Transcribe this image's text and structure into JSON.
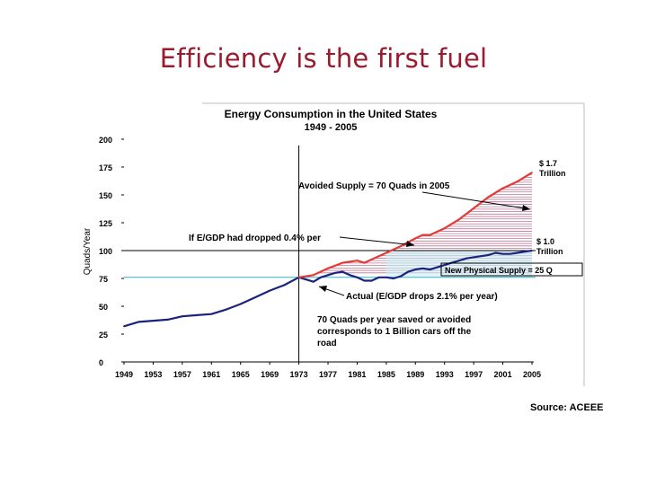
{
  "slide": {
    "title": "Efficiency is the first fuel",
    "source": "Source: ACEEE"
  },
  "chart_data": {
    "type": "line",
    "title": "Energy Consumption in the United States",
    "subtitle": "1949 - 2005",
    "xlabel": "",
    "ylabel": "Quads/Year",
    "xlim": [
      1949,
      2005
    ],
    "ylim": [
      0,
      200
    ],
    "x_ticks": [
      1949,
      1953,
      1957,
      1961,
      1965,
      1969,
      1973,
      1977,
      1981,
      1985,
      1989,
      1993,
      1997,
      2001,
      2005
    ],
    "y_ticks": [
      0,
      25,
      50,
      75,
      100,
      125,
      150,
      175,
      200
    ],
    "grid": false,
    "series": [
      {
        "name": "Actual (E/GDP drops 2.1% per year)",
        "color": "#1a237e",
        "x": [
          1949,
          1951,
          1953,
          1955,
          1957,
          1959,
          1961,
          1963,
          1965,
          1967,
          1969,
          1971,
          1973,
          1974,
          1975,
          1976,
          1977,
          1978,
          1979,
          1980,
          1981,
          1982,
          1983,
          1984,
          1985,
          1986,
          1987,
          1988,
          1989,
          1990,
          1991,
          1992,
          1993,
          1994,
          1995,
          1996,
          1997,
          1998,
          1999,
          2000,
          2001,
          2002,
          2003,
          2004,
          2005
        ],
        "values": [
          32,
          36,
          37,
          38,
          41,
          42,
          43,
          47,
          52,
          58,
          64,
          69,
          76,
          74,
          72,
          76,
          78,
          80,
          81,
          78,
          76,
          73,
          73,
          76,
          76,
          75,
          77,
          81,
          83,
          84,
          83,
          85,
          87,
          89,
          91,
          93,
          94,
          95,
          96,
          98,
          97,
          97,
          98,
          99,
          100
        ]
      },
      {
        "name": "If E/GDP had dropped 0.4% per",
        "color": "#e53935",
        "x": [
          1973,
          1975,
          1977,
          1979,
          1981,
          1982,
          1983,
          1985,
          1987,
          1989,
          1990,
          1991,
          1993,
          1995,
          1997,
          1999,
          2001,
          2003,
          2005
        ],
        "values": [
          76,
          78,
          84,
          89,
          91,
          89,
          92,
          98,
          104,
          111,
          114,
          114,
          120,
          128,
          138,
          148,
          156,
          162,
          170
        ]
      }
    ],
    "annotations": {
      "avoided_supply": "Avoided Supply = 70 Quads in 2005",
      "dropped_label": "If E/GDP had dropped 0.4% per",
      "new_supply": "New Physical Supply = 25 Q",
      "actual_label": "Actual (E/GDP drops 2.1% per year)",
      "saved_line1": "70 Quads per year saved or avoided",
      "saved_line2": "corresponds to 1 Billion cars off the",
      "saved_line3": "road",
      "top_value": "$ 1.7",
      "top_unit": "Trillion",
      "mid_value": "$ 1.0",
      "mid_unit": "Trillion"
    },
    "reference_lines": [
      {
        "name": "baseline-1973",
        "value": 76,
        "color": "#3ab0c7"
      },
      {
        "name": "level-1985",
        "value": 100,
        "color": "#000000"
      }
    ],
    "vertical_marker": 1973
  }
}
